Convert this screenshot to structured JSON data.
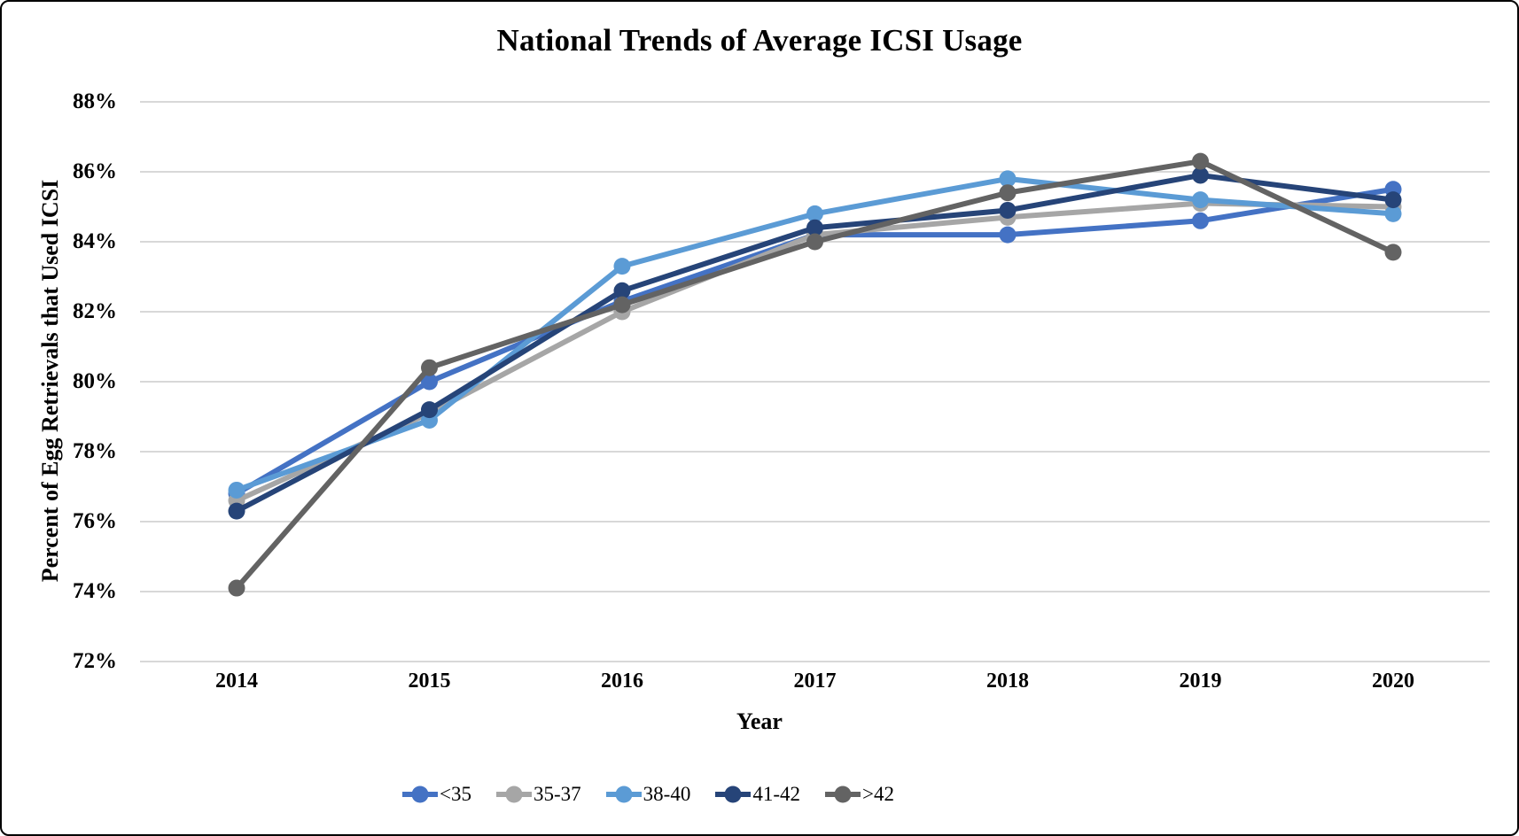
{
  "figure": {
    "title": "National Trends of Average ICSI Usage",
    "x_axis_title": "Year",
    "y_axis_title": "Percent of Egg Retrievals that Used ICSI"
  },
  "chart_data": {
    "type": "line",
    "title": "National Trends of Average ICSI Usage",
    "xlabel": "Year",
    "ylabel": "Percent of Egg Retrievals that Used ICSI",
    "categories": [
      "2014",
      "2015",
      "2016",
      "2017",
      "2018",
      "2019",
      "2020"
    ],
    "series": [
      {
        "name": "<35",
        "color": "#4472C4",
        "values": [
          76.8,
          80.0,
          82.3,
          84.2,
          84.2,
          84.6,
          85.5
        ]
      },
      {
        "name": "35-37",
        "color": "#A6A6A6",
        "values": [
          76.6,
          79.1,
          82.0,
          84.2,
          84.7,
          85.1,
          85.0
        ]
      },
      {
        "name": "38-40",
        "color": "#5B9BD5",
        "values": [
          76.9,
          78.9,
          83.3,
          84.8,
          85.8,
          85.2,
          84.8
        ]
      },
      {
        "name": "41-42",
        "color": "#264478",
        "values": [
          76.3,
          79.2,
          82.6,
          84.4,
          84.9,
          85.9,
          85.2
        ]
      },
      {
        "name": ">42",
        "color": "#636363",
        "values": [
          74.1,
          80.4,
          82.2,
          84.0,
          85.4,
          86.3,
          83.7
        ]
      }
    ],
    "ylim": [
      72,
      88
    ],
    "ytick_step": 2,
    "ytick_labels": [
      "88%",
      "86%",
      "84%",
      "82%",
      "80%",
      "78%",
      "76%",
      "74%",
      "72%"
    ],
    "grid": true,
    "gridline_color": "#D8D8D8",
    "legend_position": "bottom",
    "marker": "circle"
  }
}
